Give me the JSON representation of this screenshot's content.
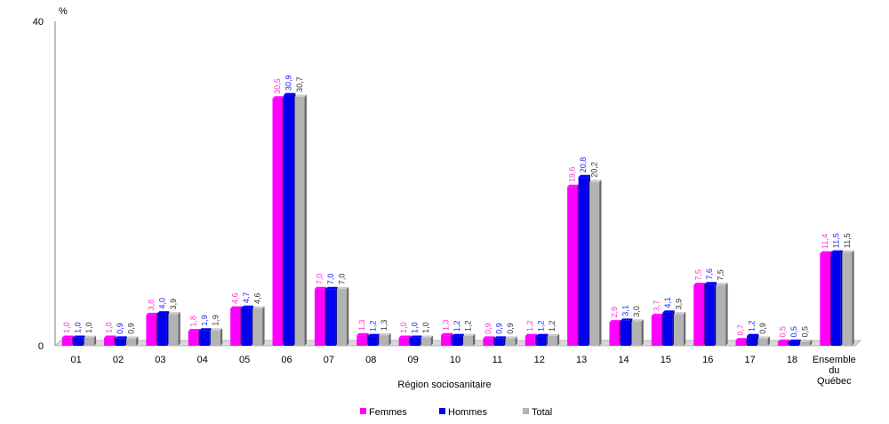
{
  "chart_data": {
    "type": "bar",
    "ylabel": "%",
    "xlabel": "Région sociosanitaire",
    "ylim": [
      0,
      40
    ],
    "yticks": [
      "0",
      "40"
    ],
    "categories": [
      [
        "01"
      ],
      [
        "02"
      ],
      [
        "03"
      ],
      [
        "04"
      ],
      [
        "05"
      ],
      [
        "06"
      ],
      [
        "07"
      ],
      [
        "08"
      ],
      [
        "09"
      ],
      [
        "10"
      ],
      [
        "11"
      ],
      [
        "12"
      ],
      [
        "13"
      ],
      [
        "14"
      ],
      [
        "15"
      ],
      [
        "16"
      ],
      [
        "17"
      ],
      [
        "18"
      ],
      [
        "Ensemble",
        "du",
        "Québec"
      ]
    ],
    "series": [
      {
        "name": "Femmes",
        "color": "#ff00ff",
        "labelColor": "#ff33cc",
        "values": [
          1.0,
          1.0,
          3.8,
          1.8,
          4.6,
          30.5,
          7.0,
          1.3,
          1.0,
          1.3,
          0.9,
          1.2,
          19.6,
          2.9,
          3.7,
          7.5,
          0.7,
          0.5,
          11.4
        ],
        "labels": [
          "1,0",
          "1,0",
          "3,8",
          "1,8",
          "4,6",
          "30,5",
          "7,0",
          "1,3",
          "1,0",
          "1,3",
          "0,9",
          "1,2",
          "19,6",
          "2,9",
          "3,7",
          "7,5",
          "0,7",
          "0,5",
          "11,4"
        ]
      },
      {
        "name": "Hommes",
        "color": "#0000ee",
        "labelColor": "#1a1aff",
        "values": [
          1.0,
          0.9,
          4.0,
          1.9,
          4.7,
          30.9,
          7.0,
          1.2,
          1.0,
          1.2,
          0.9,
          1.2,
          20.8,
          3.1,
          4.1,
          7.6,
          1.2,
          0.5,
          11.5
        ],
        "labels": [
          "1,0",
          "0,9",
          "4,0",
          "1,9",
          "4,7",
          "30,9",
          "7,0",
          "1,2",
          "1,0",
          "1,2",
          "0,9",
          "1,2",
          "20,8",
          "3,1",
          "4,1",
          "7,6",
          "1,2",
          "0,5",
          "11,5"
        ]
      },
      {
        "name": "Total",
        "color": "#b3b3b3",
        "labelColor": "#333333",
        "values": [
          1.0,
          0.9,
          3.9,
          1.9,
          4.6,
          30.7,
          7.0,
          1.3,
          1.0,
          1.2,
          0.9,
          1.2,
          20.2,
          3.0,
          3.9,
          7.5,
          0.9,
          0.5,
          11.5
        ],
        "labels": [
          "1,0",
          "0,9",
          "3,9",
          "1,9",
          "4,6",
          "30,7",
          "7,0",
          "1,3",
          "1,0",
          "1,2",
          "0,9",
          "1,2",
          "20,2",
          "3,0",
          "3,9",
          "7,5",
          "0,9",
          "0,5",
          "11,5"
        ]
      }
    ],
    "legend": "bottom-center"
  }
}
